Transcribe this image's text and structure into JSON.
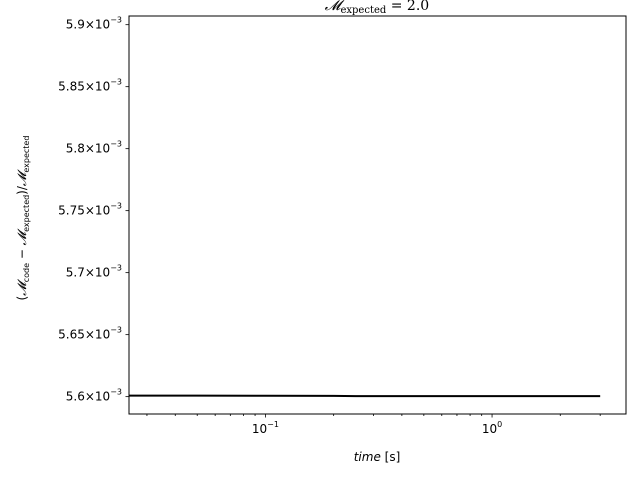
{
  "chart_data": {
    "type": "line",
    "title": {
      "symbol": "𝓜",
      "subscript": "expected",
      "rest": " = 2.0"
    },
    "xlabel": {
      "italic": "time",
      "rest": " [s]"
    },
    "ylabel": {
      "open": "(",
      "sym1": "𝓜",
      "sub1": "code",
      "minus": " − ",
      "sym2": "𝓜",
      "sub2": "expected",
      "close": ")/",
      "sym3": "𝓜",
      "sub3": "expected"
    },
    "xscale": "log",
    "xlim": [
      0.025,
      3.9
    ],
    "ylim": [
      0.005586,
      0.005907
    ],
    "x_ticks": [
      {
        "value": 0.1,
        "mantissa": "10",
        "exponent": "−1"
      },
      {
        "value": 1,
        "mantissa": "10",
        "exponent": "0"
      }
    ],
    "y_ticks": [
      {
        "value": 0.0056,
        "label": "5.6×10",
        "exponent": "−3"
      },
      {
        "value": 0.00565,
        "label": "5.65×10",
        "exponent": "−3"
      },
      {
        "value": 0.0057,
        "label": "5.7×10",
        "exponent": "−3"
      },
      {
        "value": 0.00575,
        "label": "5.75×10",
        "exponent": "−3"
      },
      {
        "value": 0.0058,
        "label": "5.8×10",
        "exponent": "−3"
      },
      {
        "value": 0.00585,
        "label": "5.85×10",
        "exponent": "−3"
      },
      {
        "value": 0.0059,
        "label": "5.9×10",
        "exponent": "−3"
      }
    ],
    "grid": false,
    "legend": "none",
    "series": [
      {
        "color": "#000000",
        "x": [
          0.025,
          0.05,
          0.1,
          0.2,
          0.25,
          0.5,
          1,
          2,
          3
        ],
        "y": [
          0.0056008,
          0.0056008,
          0.0056007,
          0.0056006,
          0.0056004,
          0.0056004,
          0.0056004,
          0.0056004,
          0.0056004
        ]
      }
    ]
  }
}
